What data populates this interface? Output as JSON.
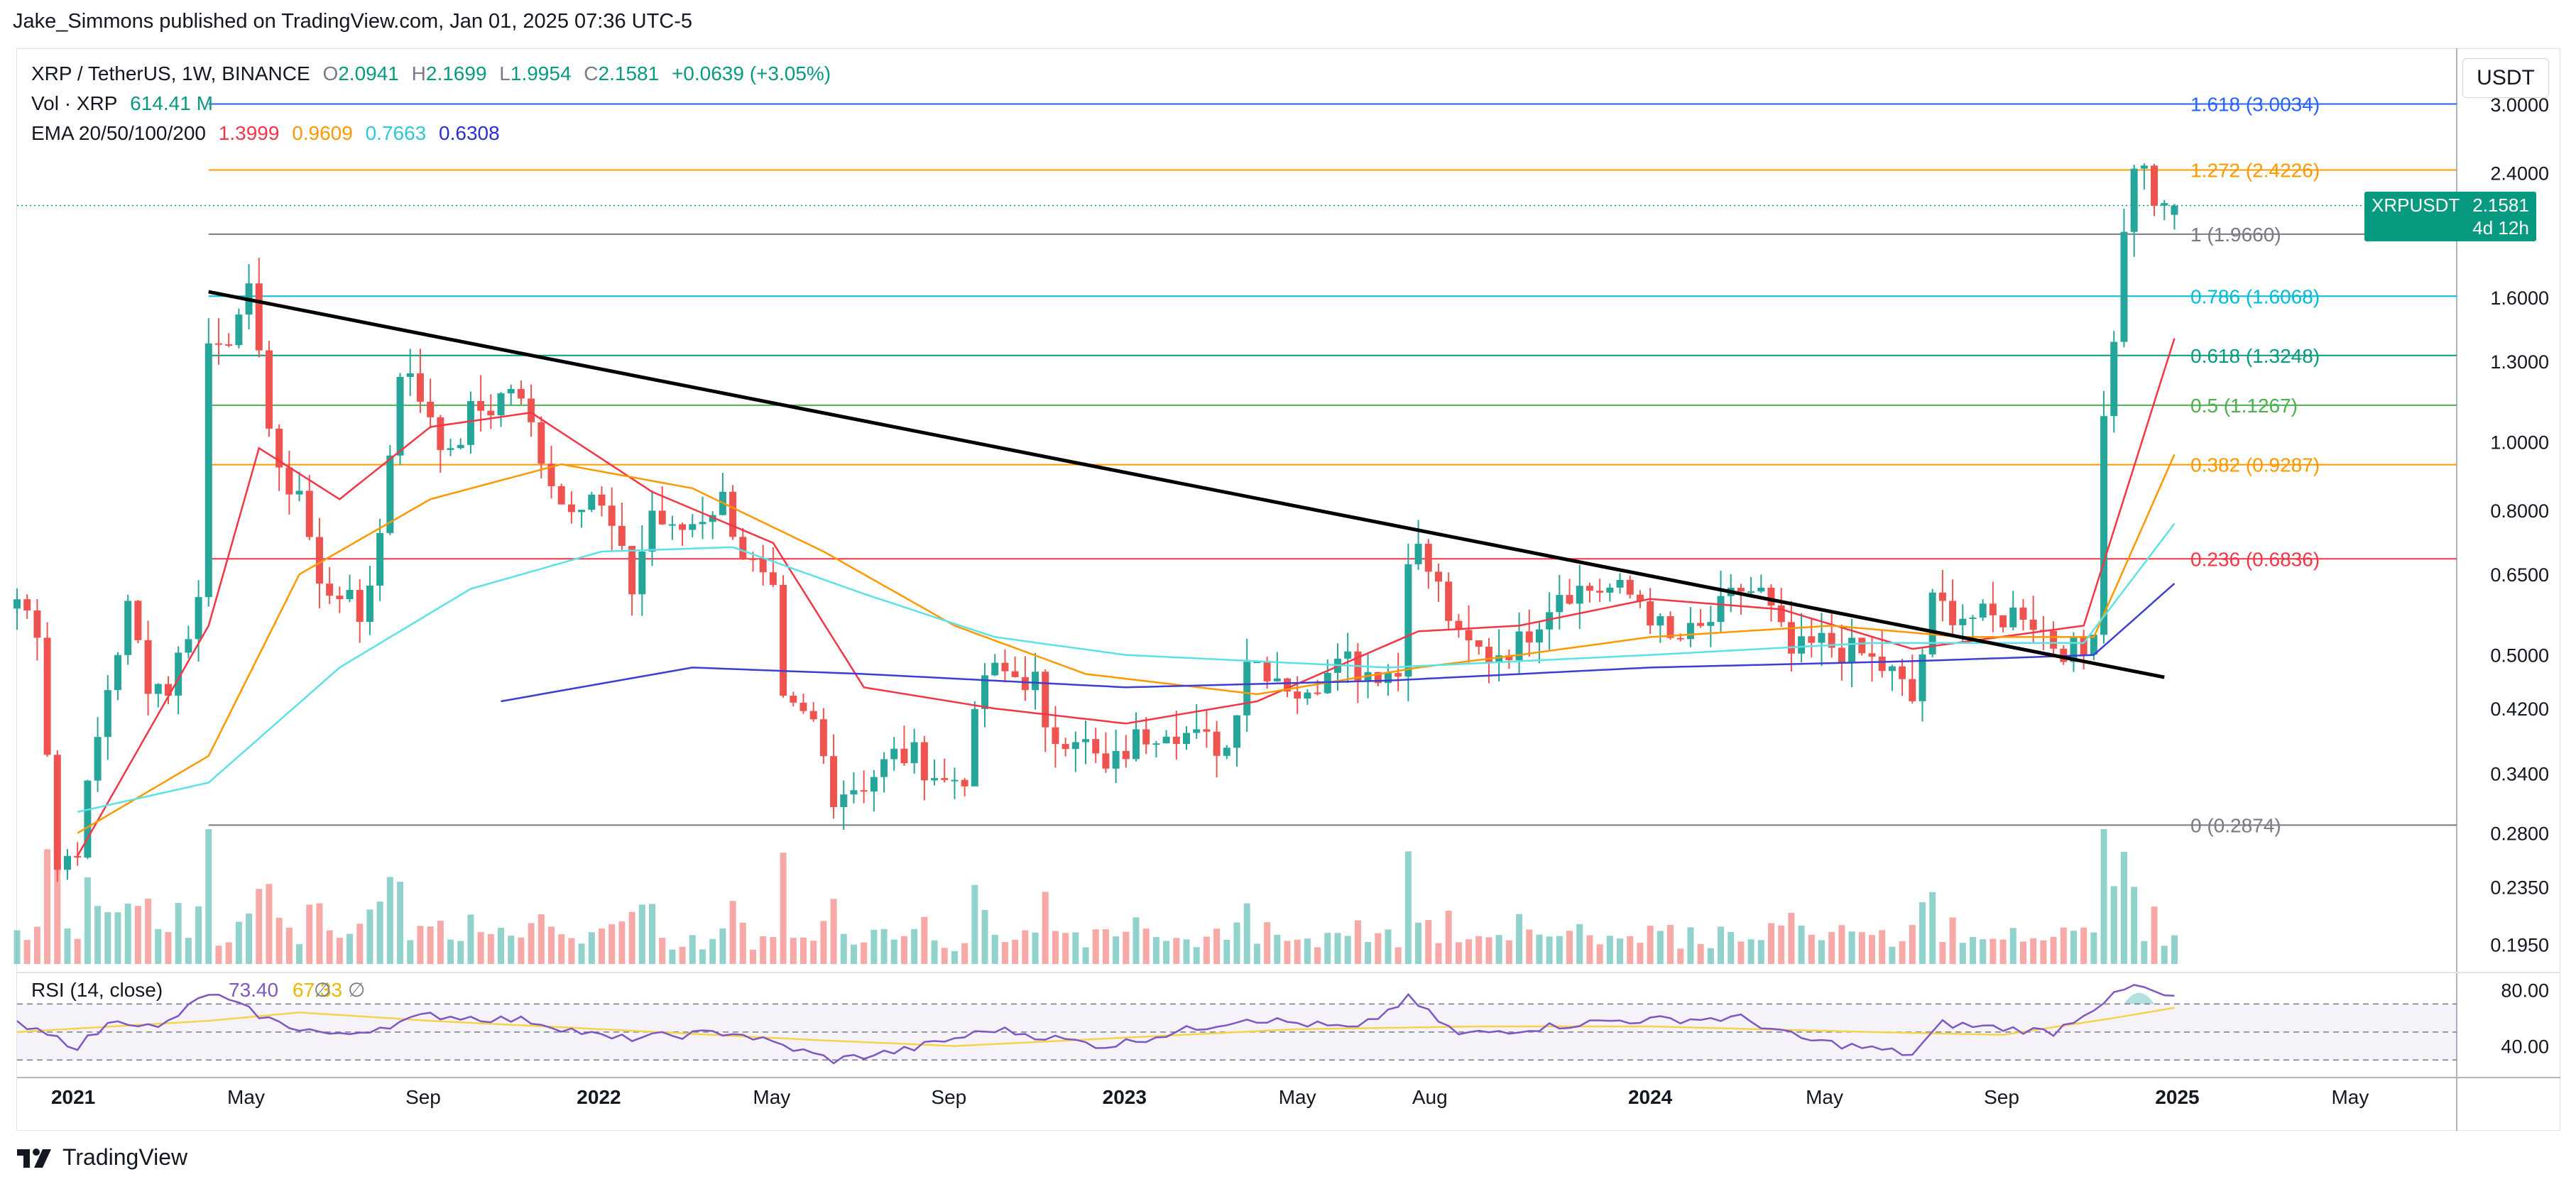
{
  "header": {
    "text": "Jake_Simmons published on TradingView.com, Jan 01, 2025 07:36 UTC-5"
  },
  "legend": {
    "symbol": "XRP / TetherUS, 1W, BINANCE",
    "o_label": "O",
    "o": "2.0941",
    "h_label": "H",
    "h": "2.1699",
    "l_label": "L",
    "l": "1.9954",
    "c_label": "C",
    "c": "2.1581",
    "change": "+0.0639 (+3.05%)",
    "vol_label": "Vol · XRP",
    "vol": "614.41 M",
    "ema_label": "EMA 20/50/100/200",
    "ema20": "1.3999",
    "ema50": "0.9609",
    "ema100": "0.7663",
    "ema200": "0.6308"
  },
  "currency_button": "USDT",
  "price_tag": {
    "symbol": "XRPUSDT",
    "price": "2.1581",
    "countdown": "4d 12h"
  },
  "footer": {
    "brand": "TradingView"
  },
  "colors": {
    "up": "#26a69a",
    "down": "#ef5350",
    "ema20": "#f23645",
    "ema50": "#ff9800",
    "ema100": "#5ce1e6",
    "ema200": "#3d3fd4",
    "rsi": "#7e57c2",
    "rsi_ma": "#f5d44c"
  },
  "chart_data": {
    "type": "candlestick",
    "title": "XRP / TetherUS, 1W, BINANCE",
    "y_scale": "log",
    "ylim": [
      0.18,
      3.6
    ],
    "y_ticks": [
      "3.0000",
      "2.4000",
      "1.6000",
      "1.3000",
      "1.0000",
      "0.8000",
      "0.6500",
      "0.5000",
      "0.4200",
      "0.3400",
      "0.2800",
      "0.2350",
      "0.1950"
    ],
    "x_ticks": [
      "2021",
      "May",
      "Sep",
      "2022",
      "May",
      "Sep",
      "2023",
      "May",
      "Aug",
      "2024",
      "May",
      "Sep",
      "2025",
      "May"
    ],
    "x_tick_dates": [
      "2021-01-01",
      "2021-05-01",
      "2021-09-01",
      "2022-01-01",
      "2022-05-01",
      "2022-09-01",
      "2023-01-01",
      "2023-05-01",
      "2023-08-01",
      "2024-01-01",
      "2024-05-01",
      "2024-09-01",
      "2025-01-01",
      "2025-05-01"
    ],
    "xlim": [
      "2020-11-23",
      "2025-07-14"
    ],
    "fib_levels": [
      {
        "label": "1.618 (3.0034)",
        "value": 3.0034,
        "color": "#2962ff"
      },
      {
        "label": "1.272 (2.4226)",
        "value": 2.4226,
        "color": "#ff9800"
      },
      {
        "label": "1 (1.9660)",
        "value": 1.966,
        "color": "#787b86"
      },
      {
        "label": "0.786 (1.6068)",
        "value": 1.6068,
        "color": "#00bcd4"
      },
      {
        "label": "0.618 (1.3248)",
        "value": 1.3248,
        "color": "#089981"
      },
      {
        "label": "0.5 (1.1267)",
        "value": 1.1267,
        "color": "#4caf50"
      },
      {
        "label": "0.382 (0.9287)",
        "value": 0.9287,
        "color": "#ff9800"
      },
      {
        "label": "0.236 (0.6836)",
        "value": 0.6836,
        "color": "#f23645"
      },
      {
        "label": "0 (0.2874)",
        "value": 0.2874,
        "color": "#787b86"
      }
    ],
    "fib_start": "2021-04-05",
    "trendline": [
      {
        "date": "2021-04-05",
        "price": 1.63
      },
      {
        "date": "2024-12-23",
        "price": 0.465
      }
    ],
    "last_close": 2.1581,
    "anchors": [
      [
        "2020-11-23",
        0.6
      ],
      [
        "2020-12-07",
        0.55
      ],
      [
        "2020-12-21",
        0.25
      ],
      [
        "2021-01-04",
        0.27
      ],
      [
        "2021-01-25",
        0.45
      ],
      [
        "2021-02-08",
        0.58
      ],
      [
        "2021-02-22",
        0.46
      ],
      [
        "2021-03-08",
        0.45
      ],
      [
        "2021-03-29",
        0.6
      ],
      [
        "2021-04-05",
        1.38
      ],
      [
        "2021-04-12",
        1.42
      ],
      [
        "2021-04-26",
        1.45
      ],
      [
        "2021-05-03",
        1.6
      ],
      [
        "2021-05-10",
        1.4
      ],
      [
        "2021-05-17",
        1.05
      ],
      [
        "2021-05-24",
        0.88
      ],
      [
        "2021-06-07",
        0.86
      ],
      [
        "2021-06-21",
        0.62
      ],
      [
        "2021-07-05",
        0.62
      ],
      [
        "2021-07-19",
        0.56
      ],
      [
        "2021-08-02",
        0.74
      ],
      [
        "2021-08-16",
        1.28
      ],
      [
        "2021-09-06",
        1.1
      ],
      [
        "2021-09-20",
        0.94
      ],
      [
        "2021-10-04",
        1.1
      ],
      [
        "2021-10-18",
        1.12
      ],
      [
        "2021-11-01",
        1.2
      ],
      [
        "2021-11-15",
        1.05
      ],
      [
        "2021-12-06",
        0.82
      ],
      [
        "2021-12-27",
        0.85
      ],
      [
        "2022-01-10",
        0.75
      ],
      [
        "2022-01-24",
        0.62
      ],
      [
        "2022-02-07",
        0.8
      ],
      [
        "2022-02-21",
        0.74
      ],
      [
        "2022-03-07",
        0.77
      ],
      [
        "2022-03-28",
        0.83
      ],
      [
        "2022-04-11",
        0.7
      ],
      [
        "2022-05-02",
        0.6
      ],
      [
        "2022-05-09",
        0.42
      ],
      [
        "2022-05-30",
        0.4
      ],
      [
        "2022-06-13",
        0.32
      ],
      [
        "2022-07-04",
        0.33
      ],
      [
        "2022-07-25",
        0.36
      ],
      [
        "2022-08-08",
        0.36
      ],
      [
        "2022-08-29",
        0.33
      ],
      [
        "2022-09-12",
        0.34
      ],
      [
        "2022-09-26",
        0.47
      ],
      [
        "2022-10-10",
        0.47
      ],
      [
        "2022-10-31",
        0.46
      ],
      [
        "2022-11-07",
        0.38
      ],
      [
        "2022-11-28",
        0.39
      ],
      [
        "2022-12-19",
        0.34
      ],
      [
        "2023-01-09",
        0.38
      ],
      [
        "2023-01-30",
        0.4
      ],
      [
        "2023-02-20",
        0.38
      ],
      [
        "2023-03-13",
        0.37
      ],
      [
        "2023-03-27",
        0.5
      ],
      [
        "2023-04-17",
        0.47
      ],
      [
        "2023-05-08",
        0.43
      ],
      [
        "2023-05-29",
        0.52
      ],
      [
        "2023-06-12",
        0.48
      ],
      [
        "2023-07-10",
        0.47
      ],
      [
        "2023-07-13",
        0.71
      ],
      [
        "2023-07-24",
        0.7
      ],
      [
        "2023-08-07",
        0.62
      ],
      [
        "2023-08-21",
        0.52
      ],
      [
        "2023-09-11",
        0.5
      ],
      [
        "2023-10-02",
        0.52
      ],
      [
        "2023-10-30",
        0.62
      ],
      [
        "2023-11-13",
        0.62
      ],
      [
        "2023-12-04",
        0.62
      ],
      [
        "2023-12-25",
        0.6
      ],
      [
        "2024-01-15",
        0.52
      ],
      [
        "2024-02-05",
        0.54
      ],
      [
        "2024-03-04",
        0.62
      ],
      [
        "2024-03-18",
        0.61
      ],
      [
        "2024-04-08",
        0.5
      ],
      [
        "2024-04-29",
        0.52
      ],
      [
        "2024-05-27",
        0.5
      ],
      [
        "2024-06-17",
        0.47
      ],
      [
        "2024-07-01",
        0.43
      ],
      [
        "2024-07-15",
        0.59
      ],
      [
        "2024-08-05",
        0.57
      ],
      [
        "2024-08-26",
        0.56
      ],
      [
        "2024-09-16",
        0.58
      ],
      [
        "2024-10-07",
        0.52
      ],
      [
        "2024-10-28",
        0.5
      ],
      [
        "2024-11-04",
        0.56
      ],
      [
        "2024-11-11",
        1.1
      ],
      [
        "2024-11-18",
        1.43
      ],
      [
        "2024-11-25",
        1.95
      ],
      [
        "2024-12-02",
        2.5
      ],
      [
        "2024-12-09",
        2.4
      ],
      [
        "2024-12-16",
        2.2
      ],
      [
        "2024-12-23",
        2.09
      ],
      [
        "2024-12-30",
        2.1581
      ]
    ],
    "ema_anchors": {
      "ema20": [
        [
          "2021-01-04",
          0.26
        ],
        [
          "2021-04-05",
          0.55
        ],
        [
          "2021-05-10",
          0.98
        ],
        [
          "2021-07-05",
          0.83
        ],
        [
          "2021-09-06",
          1.05
        ],
        [
          "2021-11-15",
          1.1
        ],
        [
          "2022-02-07",
          0.85
        ],
        [
          "2022-05-02",
          0.72
        ],
        [
          "2022-07-04",
          0.45
        ],
        [
          "2022-10-03",
          0.42
        ],
        [
          "2023-01-02",
          0.4
        ],
        [
          "2023-04-03",
          0.43
        ],
        [
          "2023-07-24",
          0.54
        ],
        [
          "2023-10-02",
          0.55
        ],
        [
          "2024-01-01",
          0.6
        ],
        [
          "2024-04-01",
          0.58
        ],
        [
          "2024-07-01",
          0.51
        ],
        [
          "2024-10-28",
          0.55
        ],
        [
          "2024-12-30",
          1.4
        ]
      ],
      "ema50": [
        [
          "2021-01-04",
          0.28
        ],
        [
          "2021-04-05",
          0.36
        ],
        [
          "2021-06-07",
          0.65
        ],
        [
          "2021-09-06",
          0.83
        ],
        [
          "2021-12-06",
          0.93
        ],
        [
          "2022-03-07",
          0.86
        ],
        [
          "2022-06-06",
          0.7
        ],
        [
          "2022-09-05",
          0.55
        ],
        [
          "2022-12-05",
          0.47
        ],
        [
          "2023-04-03",
          0.44
        ],
        [
          "2023-07-24",
          0.48
        ],
        [
          "2023-10-02",
          0.5
        ],
        [
          "2024-01-01",
          0.53
        ],
        [
          "2024-05-06",
          0.55
        ],
        [
          "2024-08-05",
          0.53
        ],
        [
          "2024-11-04",
          0.53
        ],
        [
          "2024-12-30",
          0.96
        ]
      ],
      "ema100": [
        [
          "2021-01-04",
          0.3
        ],
        [
          "2021-04-05",
          0.33
        ],
        [
          "2021-07-05",
          0.48
        ],
        [
          "2021-10-04",
          0.62
        ],
        [
          "2022-01-03",
          0.7
        ],
        [
          "2022-04-04",
          0.71
        ],
        [
          "2022-07-04",
          0.61
        ],
        [
          "2022-10-03",
          0.53
        ],
        [
          "2023-01-02",
          0.5
        ],
        [
          "2023-07-03",
          0.48
        ],
        [
          "2024-01-01",
          0.5
        ],
        [
          "2024-06-03",
          0.52
        ],
        [
          "2024-10-28",
          0.52
        ],
        [
          "2024-12-30",
          0.7663
        ]
      ],
      "ema200": [
        [
          "2021-10-25",
          0.43
        ],
        [
          "2022-03-07",
          0.48
        ],
        [
          "2022-07-04",
          0.47
        ],
        [
          "2023-01-02",
          0.45
        ],
        [
          "2023-07-03",
          0.46
        ],
        [
          "2024-01-01",
          0.48
        ],
        [
          "2024-07-01",
          0.49
        ],
        [
          "2024-11-04",
          0.5
        ],
        [
          "2024-12-30",
          0.6308
        ]
      ]
    },
    "volume": "614.41 M",
    "rsi": {
      "label": "RSI (14, close)",
      "value": "73.40",
      "ma_value": "67.33",
      "ylim": [
        20,
        90
      ],
      "y_ticks": [
        "80.00",
        "40.00"
      ],
      "bands": [
        70,
        50,
        30
      ],
      "anchors": [
        [
          "2020-11-23",
          55
        ],
        [
          "2021-01-04",
          40
        ],
        [
          "2021-02-01",
          60
        ],
        [
          "2021-03-01",
          52
        ],
        [
          "2021-04-05",
          78
        ],
        [
          "2021-05-24",
          56
        ],
        [
          "2021-07-05",
          47
        ],
        [
          "2021-09-06",
          62
        ],
        [
          "2021-11-15",
          58
        ],
        [
          "2022-01-10",
          45
        ],
        [
          "2022-04-04",
          50
        ],
        [
          "2022-06-13",
          30
        ],
        [
          "2022-08-01",
          37
        ],
        [
          "2022-10-03",
          52
        ],
        [
          "2022-12-19",
          40
        ],
        [
          "2023-03-27",
          60
        ],
        [
          "2023-06-12",
          52
        ],
        [
          "2023-07-17",
          74
        ],
        [
          "2023-08-21",
          48
        ],
        [
          "2023-12-04",
          58
        ],
        [
          "2024-03-04",
          60
        ],
        [
          "2024-04-15",
          45
        ],
        [
          "2024-07-01",
          34
        ],
        [
          "2024-07-22",
          56
        ],
        [
          "2024-10-07",
          50
        ],
        [
          "2024-11-11",
          72
        ],
        [
          "2024-12-02",
          83
        ],
        [
          "2024-12-30",
          73.4
        ]
      ],
      "ma_anchors": [
        [
          "2020-11-23",
          50
        ],
        [
          "2021-04-05",
          58
        ],
        [
          "2021-06-07",
          64
        ],
        [
          "2021-09-06",
          58
        ],
        [
          "2022-01-03",
          52
        ],
        [
          "2022-06-06",
          44
        ],
        [
          "2022-09-05",
          40
        ],
        [
          "2023-01-02",
          46
        ],
        [
          "2023-05-01",
          52
        ],
        [
          "2023-09-04",
          54
        ],
        [
          "2024-01-01",
          54
        ],
        [
          "2024-06-03",
          50
        ],
        [
          "2024-09-02",
          48
        ],
        [
          "2024-11-18",
          60
        ],
        [
          "2024-12-30",
          67.33
        ]
      ]
    }
  }
}
